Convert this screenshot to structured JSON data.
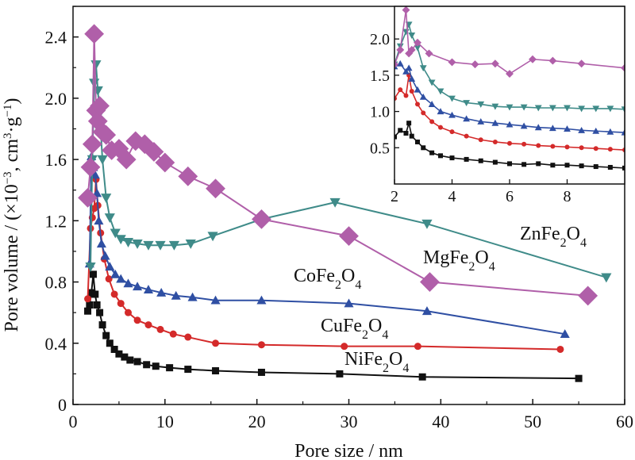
{
  "chart_data": {
    "type": "line",
    "xlabel": "Pore size / nm",
    "ylabel_parts": {
      "main": "Pore volume / (×10",
      "exp": "−3",
      "unit_mid": ", cm",
      "unit_exp": "3",
      "unit_tail": "·g",
      "unit_exp2": "−1",
      "close": ")"
    },
    "xlim": [
      0,
      60
    ],
    "ylim": [
      0,
      2.6
    ],
    "x_ticks": [
      "0",
      "10",
      "20",
      "30",
      "40",
      "50",
      "60"
    ],
    "y_ticks": [
      "0",
      "0.4",
      "0.8",
      "1.2",
      "1.6",
      "2.0",
      "2.4"
    ],
    "grid": false,
    "legend": "none (series labeled directly on the plot)",
    "series": [
      {
        "name": "ZnFe2O4",
        "label_parts": [
          "ZnFe",
          "2",
          "O",
          "4"
        ],
        "color": "#3f8b89",
        "marker": "triangle-down",
        "x": [
          1.9,
          2.1,
          2.3,
          2.5,
          2.7,
          2.9,
          3.2,
          3.6,
          4.0,
          4.6,
          5.2,
          6.0,
          7.0,
          8.2,
          9.5,
          11.0,
          12.8,
          15.2,
          20.5,
          28.5,
          38.5,
          58.0
        ],
        "y": [
          0.9,
          1.6,
          2.1,
          2.22,
          2.05,
          1.9,
          1.6,
          1.35,
          1.22,
          1.12,
          1.08,
          1.06,
          1.05,
          1.04,
          1.04,
          1.04,
          1.05,
          1.1,
          1.21,
          1.32,
          1.18,
          0.83
        ]
      },
      {
        "name": "MgFe2O4",
        "label_parts": [
          "MgFe",
          "2",
          "O",
          "4"
        ],
        "color": "#b05fa9",
        "marker": "diamond",
        "x": [
          1.6,
          1.9,
          2.1,
          2.3,
          2.5,
          2.7,
          2.9,
          3.2,
          3.6,
          4.2,
          5.0,
          5.8,
          6.8,
          7.8,
          8.8,
          10.0,
          12.5,
          15.5,
          20.5,
          30.0,
          38.8,
          56.0
        ],
        "y": [
          1.35,
          1.55,
          1.7,
          2.42,
          1.92,
          1.85,
          1.95,
          1.78,
          1.76,
          1.66,
          1.67,
          1.6,
          1.72,
          1.7,
          1.65,
          1.58,
          1.49,
          1.41,
          1.21,
          1.1,
          0.8,
          0.71
        ]
      },
      {
        "name": "CoFe2O4",
        "label_parts": [
          "CoFe",
          "2",
          "O",
          "4"
        ],
        "color": "#2f4fa3",
        "marker": "triangle-up",
        "x": [
          1.8,
          2.0,
          2.2,
          2.4,
          2.6,
          2.8,
          3.1,
          3.5,
          4.0,
          4.6,
          5.2,
          6.0,
          7.0,
          8.2,
          9.6,
          11.2,
          13.0,
          15.5,
          20.5,
          30.0,
          38.5,
          53.5
        ],
        "y": [
          0.92,
          1.62,
          1.55,
          1.5,
          1.38,
          1.2,
          1.05,
          0.97,
          0.9,
          0.85,
          0.82,
          0.79,
          0.77,
          0.75,
          0.73,
          0.71,
          0.7,
          0.68,
          0.68,
          0.66,
          0.61,
          0.46
        ]
      },
      {
        "name": "CuFe2O4",
        "label_parts": [
          "CuFe",
          "2",
          "O",
          "4"
        ],
        "color": "#d42a2a",
        "marker": "circle",
        "x": [
          1.6,
          1.9,
          2.1,
          2.3,
          2.5,
          2.7,
          3.0,
          3.4,
          3.9,
          4.5,
          5.2,
          6.0,
          7.0,
          8.2,
          9.5,
          10.9,
          12.5,
          15.5,
          20.5,
          29.5,
          37.5,
          53.0
        ],
        "y": [
          0.69,
          1.15,
          1.22,
          1.28,
          1.47,
          1.3,
          1.12,
          0.95,
          0.82,
          0.72,
          0.66,
          0.6,
          0.55,
          0.52,
          0.49,
          0.46,
          0.44,
          0.4,
          0.39,
          0.38,
          0.38,
          0.36
        ]
      },
      {
        "name": "NiFe2O4",
        "label_parts": [
          "NiFe",
          "2",
          "O",
          "4"
        ],
        "color": "#111111",
        "marker": "square",
        "x": [
          1.6,
          1.8,
          2.0,
          2.2,
          2.4,
          2.6,
          2.9,
          3.2,
          3.6,
          4.0,
          4.5,
          5.0,
          5.6,
          6.2,
          7.0,
          8.0,
          9.0,
          10.5,
          12.5,
          15.5,
          20.5,
          29.0,
          38.0,
          55.0
        ],
        "y": [
          0.61,
          0.65,
          0.73,
          0.85,
          0.72,
          0.65,
          0.6,
          0.52,
          0.45,
          0.4,
          0.36,
          0.33,
          0.31,
          0.29,
          0.28,
          0.26,
          0.25,
          0.24,
          0.23,
          0.22,
          0.21,
          0.2,
          0.18,
          0.17
        ]
      }
    ],
    "inset": {
      "xlim": [
        2,
        10
      ],
      "ylim": [
        0,
        2.45
      ],
      "x_ticks": [
        "2",
        "4",
        "6",
        "8"
      ],
      "y_ticks": [
        "0.5",
        "1.0",
        "1.5",
        "2.0"
      ],
      "series": [
        {
          "name": "NiFe2O4",
          "color": "#111111",
          "marker": "square",
          "x": [
            2.0,
            2.2,
            2.4,
            2.5,
            2.6,
            2.8,
            3.0,
            3.3,
            3.6,
            4.0,
            4.5,
            5.0,
            5.5,
            6.0,
            6.5,
            7.0,
            7.5,
            8.0,
            8.5,
            9.0,
            9.5,
            10.0
          ],
          "y": [
            0.65,
            0.74,
            0.7,
            0.84,
            0.66,
            0.58,
            0.5,
            0.43,
            0.39,
            0.36,
            0.34,
            0.32,
            0.3,
            0.28,
            0.27,
            0.28,
            0.26,
            0.26,
            0.25,
            0.24,
            0.23,
            0.22
          ]
        },
        {
          "name": "CuFe2O4",
          "color": "#d42a2a",
          "marker": "circle",
          "x": [
            2.0,
            2.2,
            2.4,
            2.5,
            2.6,
            2.8,
            3.0,
            3.3,
            3.6,
            4.0,
            4.5,
            5.0,
            5.5,
            6.0,
            6.5,
            7.0,
            7.5,
            8.0,
            8.5,
            9.0,
            9.5,
            10.0
          ],
          "y": [
            1.18,
            1.3,
            1.22,
            1.5,
            1.28,
            1.1,
            0.98,
            0.86,
            0.78,
            0.72,
            0.66,
            0.61,
            0.58,
            0.56,
            0.55,
            0.53,
            0.52,
            0.51,
            0.5,
            0.49,
            0.48,
            0.47
          ]
        },
        {
          "name": "CoFe2O4",
          "color": "#2f4fa3",
          "marker": "triangle-up",
          "x": [
            2.0,
            2.2,
            2.4,
            2.5,
            2.6,
            2.8,
            3.0,
            3.3,
            3.6,
            4.0,
            4.5,
            5.0,
            5.5,
            6.0,
            6.5,
            7.0,
            7.5,
            8.0,
            8.5,
            9.0,
            9.5,
            10.0
          ],
          "y": [
            1.62,
            1.66,
            1.55,
            1.6,
            1.45,
            1.3,
            1.2,
            1.1,
            1.0,
            0.95,
            0.9,
            0.86,
            0.84,
            0.82,
            0.8,
            0.78,
            0.77,
            0.76,
            0.74,
            0.73,
            0.72,
            0.71
          ]
        },
        {
          "name": "ZnFe2O4",
          "color": "#3f8b89",
          "marker": "triangle-down",
          "x": [
            2.0,
            2.2,
            2.4,
            2.5,
            2.6,
            2.8,
            3.0,
            3.3,
            3.6,
            4.0,
            4.5,
            5.0,
            5.5,
            6.0,
            6.5,
            7.0,
            7.5,
            8.0,
            8.5,
            9.0,
            9.5,
            10.0
          ],
          "y": [
            1.65,
            1.9,
            2.1,
            2.2,
            2.05,
            1.88,
            1.6,
            1.4,
            1.28,
            1.18,
            1.12,
            1.1,
            1.07,
            1.06,
            1.06,
            1.05,
            1.05,
            1.05,
            1.04,
            1.04,
            1.04,
            1.03
          ]
        },
        {
          "name": "MgFe2O4",
          "color": "#b05fa9",
          "marker": "diamond",
          "x": [
            2.0,
            2.2,
            2.4,
            2.5,
            2.6,
            2.8,
            3.2,
            4.0,
            4.8,
            5.5,
            6.0,
            6.8,
            7.5,
            8.5,
            10.0
          ],
          "y": [
            1.65,
            1.85,
            2.4,
            1.8,
            1.85,
            1.95,
            1.8,
            1.68,
            1.65,
            1.66,
            1.52,
            1.72,
            1.7,
            1.66,
            1.6
          ]
        }
      ]
    }
  }
}
